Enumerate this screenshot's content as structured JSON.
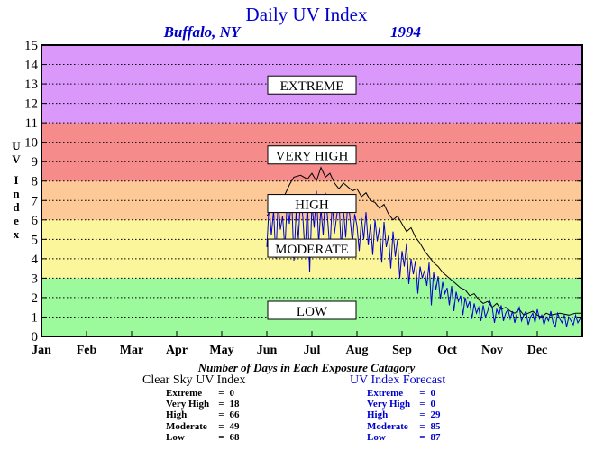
{
  "title": "Daily UV Index",
  "location": "Buffalo, NY",
  "year": "1994",
  "colors": {
    "extreme": "#da99fa",
    "very_high": "#f58b8b",
    "high": "#fcc997",
    "moderate": "#fbf59b",
    "low": "#9cfa9c",
    "title": "#0000cc",
    "clear_sky_line": "#000000",
    "forecast_line": "#0000cc"
  },
  "categories_caption": "Number of Days in Each Exposure Catagory",
  "clear_sky": {
    "heading": "Clear Sky UV Index",
    "rows": [
      {
        "label": "Extreme",
        "eq": "=",
        "value": "0"
      },
      {
        "label": "Very High",
        "eq": "=",
        "value": "18"
      },
      {
        "label": "High",
        "eq": "=",
        "value": "66"
      },
      {
        "label": "Moderate",
        "eq": "=",
        "value": "49"
      },
      {
        "label": "Low",
        "eq": "=",
        "value": "68"
      }
    ]
  },
  "forecast": {
    "heading": "UV Index Forecast",
    "rows": [
      {
        "label": "Extreme",
        "eq": "=",
        "value": "0"
      },
      {
        "label": "Very High",
        "eq": "=",
        "value": "0"
      },
      {
        "label": "High",
        "eq": "=",
        "value": "29"
      },
      {
        "label": "Moderate",
        "eq": "=",
        "value": "85"
      },
      {
        "label": "Low",
        "eq": "=",
        "value": "87"
      }
    ]
  },
  "chart_data": {
    "type": "line",
    "title": "Daily UV Index",
    "subtitle": "Buffalo, NY 1994",
    "ylabel": "UV Index",
    "xlabel": "",
    "ylim": [
      0,
      15
    ],
    "yticks": [
      "0",
      "1",
      "2",
      "3",
      "4",
      "5",
      "6",
      "7",
      "8",
      "9",
      "10",
      "11",
      "12",
      "13",
      "14",
      "15"
    ],
    "xlim": [
      0,
      12
    ],
    "xticks": [
      "Jan",
      "Feb",
      "Mar",
      "Apr",
      "May",
      "Jun",
      "Jul",
      "Aug",
      "Sep",
      "Oct",
      "Nov",
      "Dec"
    ],
    "grid": "horizontal dotted",
    "bands": [
      {
        "label": "LOW",
        "from": 0,
        "to": 3,
        "label_y": 1.3
      },
      {
        "label": "MODERATE",
        "from": 3,
        "to": 6,
        "label_y": 4.5
      },
      {
        "label": "HIGH",
        "from": 6,
        "to": 8,
        "label_y": 6.8
      },
      {
        "label": "VERY HIGH",
        "from": 8,
        "to": 11,
        "label_y": 9.3
      },
      {
        "label": "EXTREME",
        "from": 11,
        "to": 15,
        "label_y": 12.9
      }
    ],
    "series": [
      {
        "name": "Clear Sky UV Index",
        "x": [
          5.0,
          5.2,
          5.4,
          5.5,
          5.6,
          5.75,
          5.9,
          6.0,
          6.1,
          6.2,
          6.3,
          6.4,
          6.5,
          6.6,
          6.7,
          6.8,
          6.9,
          7.0,
          7.1,
          7.2,
          7.3,
          7.4,
          7.5,
          7.6,
          7.7,
          7.8,
          7.9,
          8.0,
          8.1,
          8.2,
          8.3,
          8.4,
          8.5,
          8.6,
          8.7,
          8.8,
          8.9,
          9.0,
          9.1,
          9.2,
          9.3,
          9.4,
          9.5,
          9.6,
          9.7,
          9.8,
          9.9,
          10.0,
          10.1,
          10.2,
          10.3,
          10.4,
          10.5,
          10.6,
          10.7,
          10.8,
          10.9,
          11.0,
          11.1,
          11.2,
          11.3,
          11.5,
          11.7,
          11.85,
          12.0
        ],
        "y": [
          6.2,
          6.9,
          7.3,
          7.8,
          8.2,
          8.3,
          8.1,
          8.4,
          8.0,
          8.7,
          8.2,
          8.4,
          7.9,
          7.6,
          7.9,
          7.7,
          7.5,
          7.6,
          7.2,
          7.4,
          7.0,
          6.9,
          6.6,
          6.8,
          6.3,
          6.0,
          6.2,
          5.8,
          5.4,
          5.6,
          5.1,
          4.8,
          4.4,
          4.1,
          3.8,
          3.6,
          3.3,
          3.1,
          2.9,
          2.7,
          2.5,
          2.4,
          2.1,
          2.2,
          1.9,
          1.7,
          1.8,
          1.5,
          1.7,
          1.4,
          1.5,
          1.3,
          1.2,
          1.4,
          1.1,
          1.2,
          1.3,
          1.1,
          1.0,
          1.2,
          1.1,
          1.2,
          1.1,
          1.2,
          1.2
        ]
      },
      {
        "name": "UV Index Forecast",
        "x": [
          5.0,
          5.05,
          5.1,
          5.15,
          5.2,
          5.25,
          5.3,
          5.35,
          5.4,
          5.45,
          5.5,
          5.55,
          5.6,
          5.65,
          5.7,
          5.75,
          5.8,
          5.85,
          5.9,
          5.95,
          6.0,
          6.05,
          6.1,
          6.15,
          6.2,
          6.25,
          6.3,
          6.35,
          6.4,
          6.45,
          6.5,
          6.55,
          6.6,
          6.65,
          6.7,
          6.75,
          6.8,
          6.85,
          6.9,
          6.95,
          7.0,
          7.05,
          7.1,
          7.15,
          7.2,
          7.25,
          7.3,
          7.35,
          7.4,
          7.45,
          7.5,
          7.55,
          7.6,
          7.65,
          7.7,
          7.75,
          7.8,
          7.85,
          7.9,
          7.95,
          8.0,
          8.05,
          8.1,
          8.15,
          8.2,
          8.25,
          8.3,
          8.35,
          8.4,
          8.45,
          8.5,
          8.55,
          8.6,
          8.65,
          8.7,
          8.75,
          8.8,
          8.85,
          8.9,
          8.95,
          9.0,
          9.05,
          9.1,
          9.15,
          9.2,
          9.25,
          9.3,
          9.35,
          9.4,
          9.45,
          9.5,
          9.55,
          9.6,
          9.65,
          9.7,
          9.75,
          9.8,
          9.85,
          9.9,
          9.95,
          10.0,
          10.05,
          10.1,
          10.15,
          10.2,
          10.25,
          10.3,
          10.35,
          10.4,
          10.45,
          10.5,
          10.55,
          10.6,
          10.65,
          10.7,
          10.75,
          10.8,
          10.85,
          10.9,
          10.95,
          11.0,
          11.05,
          11.1,
          11.15,
          11.2,
          11.25,
          11.3,
          11.35,
          11.4,
          11.45,
          11.5,
          11.55,
          11.6,
          11.65,
          11.7,
          11.75,
          11.8,
          11.85,
          11.9,
          11.95,
          12.0
        ],
        "y": [
          4.6,
          6.8,
          5.2,
          6.5,
          4.0,
          7.0,
          5.5,
          6.2,
          4.5,
          6.9,
          5.8,
          7.2,
          3.9,
          6.4,
          5.0,
          7.3,
          6.1,
          4.2,
          7.0,
          3.3,
          6.8,
          5.6,
          7.5,
          4.8,
          6.6,
          5.2,
          7.4,
          6.0,
          4.4,
          6.9,
          5.3,
          6.2,
          7.0,
          4.5,
          6.5,
          5.1,
          7.1,
          6.0,
          4.8,
          6.3,
          5.7,
          4.4,
          6.1,
          5.0,
          6.4,
          4.7,
          5.8,
          4.2,
          6.0,
          4.9,
          5.6,
          3.8,
          5.9,
          4.6,
          5.2,
          3.5,
          5.4,
          4.1,
          5.0,
          3.0,
          4.4,
          3.6,
          4.8,
          2.7,
          4.0,
          3.2,
          3.9,
          2.2,
          3.6,
          3.0,
          3.4,
          2.6,
          3.8,
          1.6,
          3.3,
          2.4,
          3.1,
          1.9,
          2.8,
          2.2,
          2.5,
          1.6,
          2.6,
          1.3,
          2.3,
          1.8,
          2.1,
          1.1,
          2.0,
          1.5,
          1.8,
          0.9,
          1.7,
          1.2,
          1.5,
          0.8,
          1.6,
          1.0,
          1.3,
          1.8,
          1.5,
          0.7,
          1.4,
          1.1,
          1.6,
          0.8,
          1.2,
          1.4,
          0.9,
          1.3,
          0.7,
          1.2,
          1.5,
          0.8,
          1.1,
          1.3,
          0.6,
          1.0,
          1.2,
          0.7,
          1.4,
          0.9,
          1.1,
          0.6,
          1.0,
          0.8,
          1.3,
          0.7,
          0.5,
          1.2,
          0.9,
          0.7,
          1.1,
          0.5,
          1.0,
          0.8,
          0.6,
          1.1,
          0.7,
          0.9,
          1.0
        ]
      }
    ]
  }
}
